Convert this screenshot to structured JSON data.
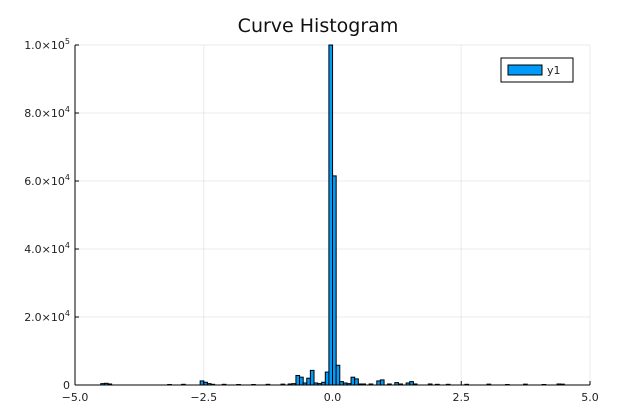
{
  "chart_data": {
    "type": "bar",
    "title": "Curve Histogram",
    "xlabel": "",
    "ylabel": "",
    "xlim": [
      -5,
      5
    ],
    "ylim": [
      0,
      100000
    ],
    "bin_width": 0.0714,
    "x_ticks": [
      {
        "value": -5,
        "label": "−5.0"
      },
      {
        "value": -2.5,
        "label": "−2.5"
      },
      {
        "value": 0,
        "label": "0.0"
      },
      {
        "value": 2.5,
        "label": "2.5"
      },
      {
        "value": 5,
        "label": "5.0"
      }
    ],
    "y_ticks": [
      {
        "value": 0,
        "mant": "0",
        "exp": ""
      },
      {
        "value": 20000,
        "mant": "2.0×10",
        "exp": "4"
      },
      {
        "value": 40000,
        "mant": "4.0×10",
        "exp": "4"
      },
      {
        "value": 60000,
        "mant": "6.0×10",
        "exp": "4"
      },
      {
        "value": 80000,
        "mant": "8.0×10",
        "exp": "4"
      },
      {
        "value": 100000,
        "mant": "1.0×10",
        "exp": "5"
      }
    ],
    "grid": true,
    "legend_position": "top-right",
    "series": [
      {
        "name": "y1",
        "color": "#009af9",
        "edge_color": "#000000",
        "bins": [
          {
            "x": -4.5,
            "y": 400
          },
          {
            "x": -4.43,
            "y": 500
          },
          {
            "x": -4.36,
            "y": 300
          },
          {
            "x": -3.2,
            "y": 150
          },
          {
            "x": -2.93,
            "y": 200
          },
          {
            "x": -2.57,
            "y": 1200
          },
          {
            "x": -2.5,
            "y": 800
          },
          {
            "x": -2.43,
            "y": 400
          },
          {
            "x": -2.36,
            "y": 200
          },
          {
            "x": -2.14,
            "y": 200
          },
          {
            "x": -1.86,
            "y": 150
          },
          {
            "x": -1.57,
            "y": 150
          },
          {
            "x": -1.29,
            "y": 200
          },
          {
            "x": -1.0,
            "y": 250
          },
          {
            "x": -0.86,
            "y": 300
          },
          {
            "x": -0.79,
            "y": 400
          },
          {
            "x": -0.71,
            "y": 2800
          },
          {
            "x": -0.64,
            "y": 2300
          },
          {
            "x": -0.57,
            "y": 600
          },
          {
            "x": -0.5,
            "y": 2000
          },
          {
            "x": -0.43,
            "y": 4300
          },
          {
            "x": -0.36,
            "y": 600
          },
          {
            "x": -0.29,
            "y": 400
          },
          {
            "x": -0.21,
            "y": 800
          },
          {
            "x": -0.14,
            "y": 3800
          },
          {
            "x": -0.07,
            "y": 100000
          },
          {
            "x": 0.0,
            "y": 61500
          },
          {
            "x": 0.07,
            "y": 5800
          },
          {
            "x": 0.14,
            "y": 1000
          },
          {
            "x": 0.21,
            "y": 600
          },
          {
            "x": 0.29,
            "y": 400
          },
          {
            "x": 0.36,
            "y": 2300
          },
          {
            "x": 0.43,
            "y": 1800
          },
          {
            "x": 0.5,
            "y": 300
          },
          {
            "x": 0.57,
            "y": 300
          },
          {
            "x": 0.71,
            "y": 300
          },
          {
            "x": 0.86,
            "y": 1200
          },
          {
            "x": 0.93,
            "y": 1500
          },
          {
            "x": 1.07,
            "y": 300
          },
          {
            "x": 1.21,
            "y": 700
          },
          {
            "x": 1.29,
            "y": 300
          },
          {
            "x": 1.43,
            "y": 600
          },
          {
            "x": 1.5,
            "y": 1000
          },
          {
            "x": 1.57,
            "y": 300
          },
          {
            "x": 1.86,
            "y": 300
          },
          {
            "x": 2.0,
            "y": 200
          },
          {
            "x": 2.21,
            "y": 200
          },
          {
            "x": 2.57,
            "y": 200
          },
          {
            "x": 3.0,
            "y": 250
          },
          {
            "x": 3.36,
            "y": 150
          },
          {
            "x": 3.71,
            "y": 250
          },
          {
            "x": 4.07,
            "y": 150
          },
          {
            "x": 4.36,
            "y": 300
          },
          {
            "x": 4.43,
            "y": 250
          }
        ]
      }
    ]
  }
}
